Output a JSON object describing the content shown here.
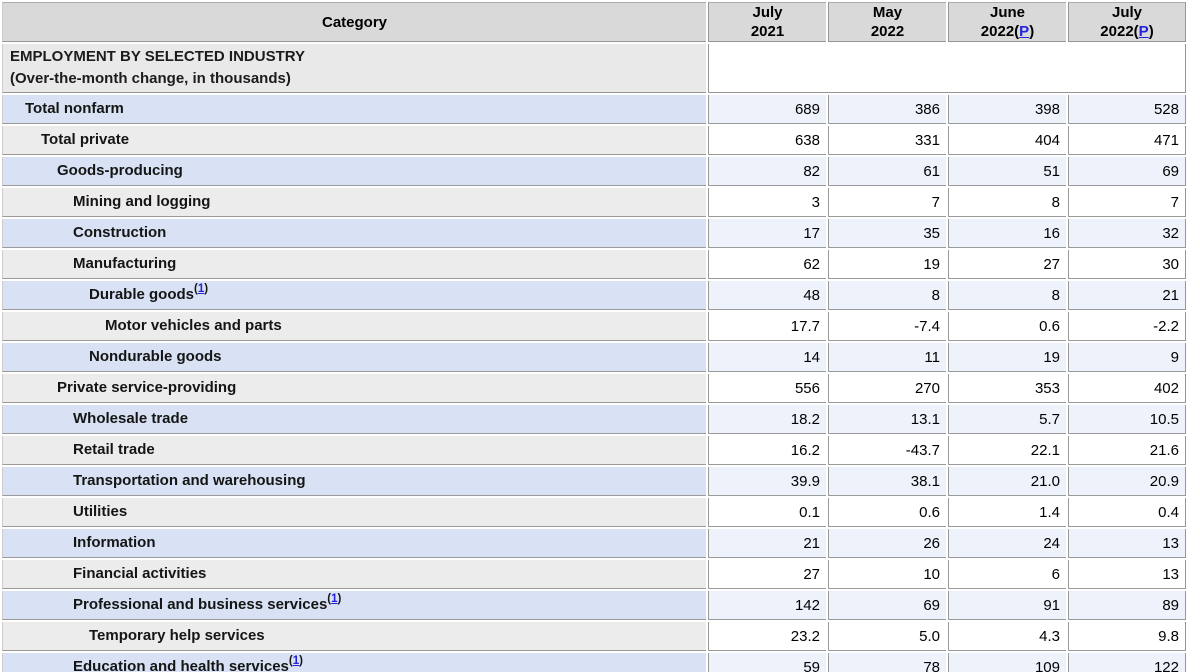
{
  "table": {
    "category_header": "Category",
    "columns": [
      {
        "month": "July",
        "year": "2021",
        "preliminary": false
      },
      {
        "month": "May",
        "year": "2022",
        "preliminary": false
      },
      {
        "month": "June",
        "year": "2022",
        "preliminary": true
      },
      {
        "month": "July",
        "year": "2022",
        "preliminary": true
      }
    ],
    "preliminary_link_text": "P",
    "footnote_link_text": "1",
    "section": {
      "title": "EMPLOYMENT BY SELECTED INDUSTRY",
      "subtitle": "(Over-the-month change, in thousands)"
    },
    "rows": [
      {
        "label": "Total nonfarm",
        "level": 1,
        "footnote": false,
        "values": [
          "689",
          "386",
          "398",
          "528"
        ]
      },
      {
        "label": "Total private",
        "level": 2,
        "footnote": false,
        "values": [
          "638",
          "331",
          "404",
          "471"
        ]
      },
      {
        "label": "Goods-producing",
        "level": 3,
        "footnote": false,
        "values": [
          "82",
          "61",
          "51",
          "69"
        ]
      },
      {
        "label": "Mining and logging",
        "level": 4,
        "footnote": false,
        "values": [
          "3",
          "7",
          "8",
          "7"
        ]
      },
      {
        "label": "Construction",
        "level": 4,
        "footnote": false,
        "values": [
          "17",
          "35",
          "16",
          "32"
        ]
      },
      {
        "label": "Manufacturing",
        "level": 4,
        "footnote": false,
        "values": [
          "62",
          "19",
          "27",
          "30"
        ]
      },
      {
        "label": "Durable goods",
        "level": 5,
        "footnote": true,
        "values": [
          "48",
          "8",
          "8",
          "21"
        ]
      },
      {
        "label": "Motor vehicles and parts",
        "level": 6,
        "footnote": false,
        "values": [
          "17.7",
          "-7.4",
          "0.6",
          "-2.2"
        ]
      },
      {
        "label": "Nondurable goods",
        "level": 5,
        "footnote": false,
        "values": [
          "14",
          "11",
          "19",
          "9"
        ]
      },
      {
        "label": "Private service-providing",
        "level": 3,
        "footnote": false,
        "values": [
          "556",
          "270",
          "353",
          "402"
        ]
      },
      {
        "label": "Wholesale trade",
        "level": 4,
        "footnote": false,
        "values": [
          "18.2",
          "13.1",
          "5.7",
          "10.5"
        ]
      },
      {
        "label": "Retail trade",
        "level": 4,
        "footnote": false,
        "values": [
          "16.2",
          "-43.7",
          "22.1",
          "21.6"
        ]
      },
      {
        "label": "Transportation and warehousing",
        "level": 4,
        "footnote": false,
        "values": [
          "39.9",
          "38.1",
          "21.0",
          "20.9"
        ]
      },
      {
        "label": "Utilities",
        "level": 4,
        "footnote": false,
        "values": [
          "0.1",
          "0.6",
          "1.4",
          "0.4"
        ]
      },
      {
        "label": "Information",
        "level": 4,
        "footnote": false,
        "values": [
          "21",
          "26",
          "24",
          "13"
        ]
      },
      {
        "label": "Financial activities",
        "level": 4,
        "footnote": false,
        "values": [
          "27",
          "10",
          "6",
          "13"
        ]
      },
      {
        "label": "Professional and business services",
        "level": 4,
        "footnote": true,
        "values": [
          "142",
          "69",
          "91",
          "89"
        ]
      },
      {
        "label": "Temporary help services",
        "level": 5,
        "footnote": false,
        "values": [
          "23.2",
          "5.0",
          "4.3",
          "9.8"
        ]
      },
      {
        "label": "Education and health services",
        "level": 4,
        "footnote": true,
        "values": [
          "59",
          "78",
          "109",
          "122"
        ]
      }
    ]
  },
  "colors": {
    "header_bg": "#d9d9d9",
    "section_bg": "#e9e9e9",
    "row_blue_label_bg": "#d8e2f4",
    "row_blue_value_bg": "#eef2fb",
    "row_gray_label_bg": "#ececec",
    "row_gray_value_bg": "#ffffff",
    "border_dark": "#969696",
    "border_light": "#cccccc",
    "link_blue": "#2222dd"
  },
  "chart_data": {
    "type": "table",
    "title": "EMPLOYMENT BY SELECTED INDUSTRY (Over-the-month change, in thousands)",
    "columns": [
      "July 2021",
      "May 2022",
      "June 2022(P)",
      "July 2022(P)"
    ],
    "rows": [
      [
        "Total nonfarm",
        689,
        386,
        398,
        528
      ],
      [
        "Total private",
        638,
        331,
        404,
        471
      ],
      [
        "Goods-producing",
        82,
        61,
        51,
        69
      ],
      [
        "Mining and logging",
        3,
        7,
        8,
        7
      ],
      [
        "Construction",
        17,
        35,
        16,
        32
      ],
      [
        "Manufacturing",
        62,
        19,
        27,
        30
      ],
      [
        "Durable goods(1)",
        48,
        8,
        8,
        21
      ],
      [
        "Motor vehicles and parts",
        17.7,
        -7.4,
        0.6,
        -2.2
      ],
      [
        "Nondurable goods",
        14,
        11,
        19,
        9
      ],
      [
        "Private service-providing",
        556,
        270,
        353,
        402
      ],
      [
        "Wholesale trade",
        18.2,
        13.1,
        5.7,
        10.5
      ],
      [
        "Retail trade",
        16.2,
        -43.7,
        22.1,
        21.6
      ],
      [
        "Transportation and warehousing",
        39.9,
        38.1,
        21.0,
        20.9
      ],
      [
        "Utilities",
        0.1,
        0.6,
        1.4,
        0.4
      ],
      [
        "Information",
        21,
        26,
        24,
        13
      ],
      [
        "Financial activities",
        27,
        10,
        6,
        13
      ],
      [
        "Professional and business services(1)",
        142,
        69,
        91,
        89
      ],
      [
        "Temporary help services",
        23.2,
        5.0,
        4.3,
        9.8
      ],
      [
        "Education and health services(1)",
        59,
        78,
        109,
        122
      ]
    ]
  }
}
